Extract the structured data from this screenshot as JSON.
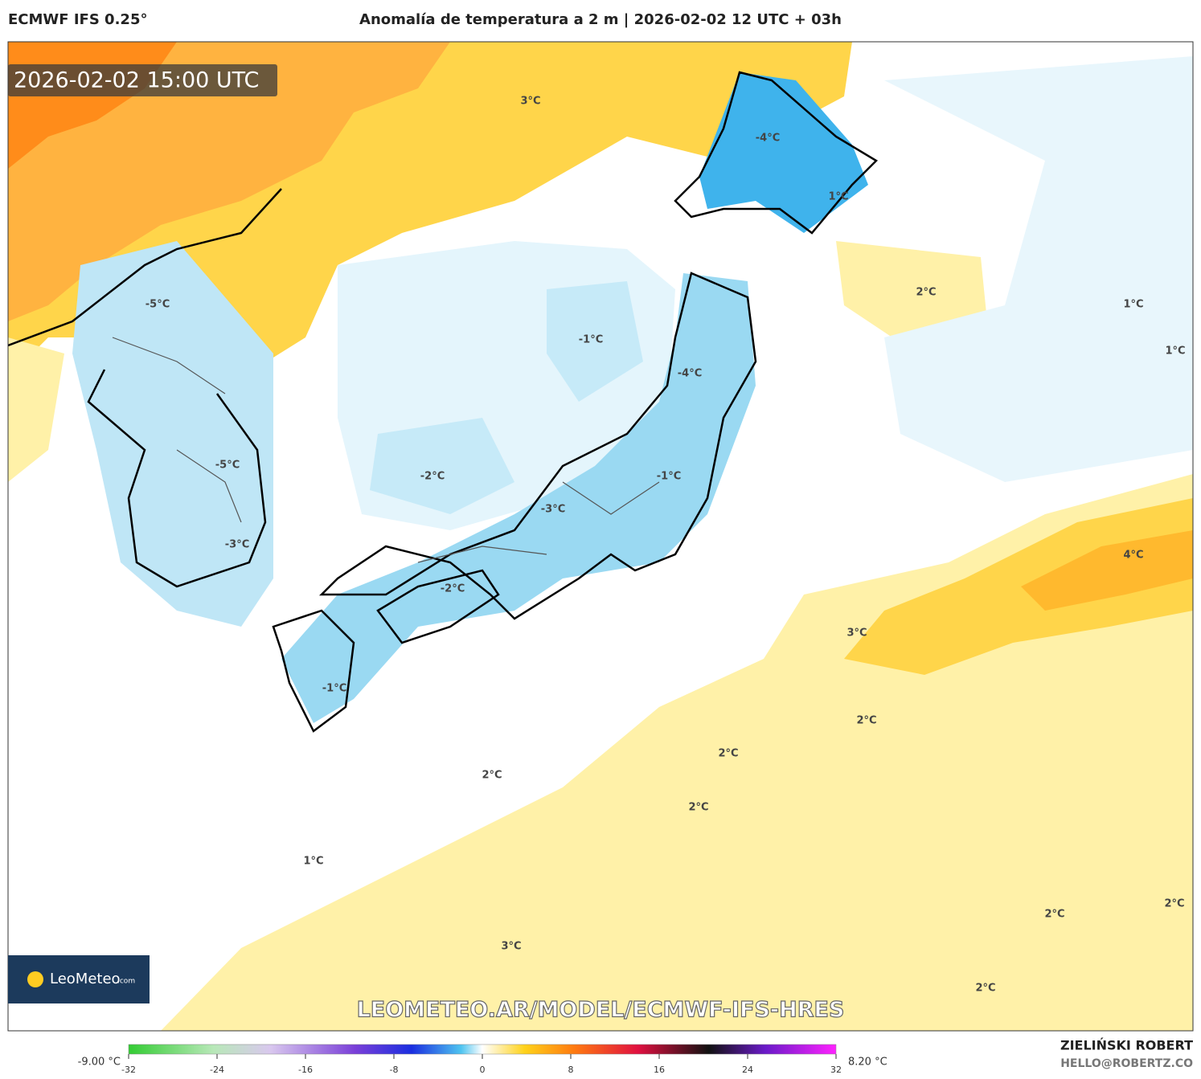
{
  "header": {
    "model": "ECMWF IFS 0.25°",
    "title": "Anomalía de temperatura a 2 m | 2026-02-02 12 UTC + 03h"
  },
  "map": {
    "valid_time": "2026-02-02 15:00 UTC",
    "contour_labels": [
      "3°C",
      "-4°C",
      "1°C",
      "2°C",
      "1°C",
      "1°C",
      "-5°C",
      "-1°C",
      "-4°C",
      "-5°C",
      "-2°C",
      "-1°C",
      "-3°C",
      "-3°C",
      "4°C",
      "-2°C",
      "3°C",
      "-1°C",
      "2°C",
      "2°C",
      "2°C",
      "2°C",
      "1°C",
      "2°C",
      "2°C",
      "3°C",
      "2°C"
    ],
    "logo": {
      "name": "LeoMeteo",
      "suffix": ".com"
    },
    "watermark": "LEOMETEO.AR/MODEL/ECMWF-IFS-HRES"
  },
  "colorbar": {
    "min_label": "-9.00 °C",
    "max_label": "8.20 °C",
    "range": [
      -32,
      32
    ],
    "ticks": [
      -32,
      -24,
      -16,
      -8,
      0,
      8,
      16,
      24,
      32
    ]
  },
  "footer": {
    "author": "ZIELIŃSKI ROBERT",
    "contact": "HELLO@ROBERTZ.CO"
  }
}
